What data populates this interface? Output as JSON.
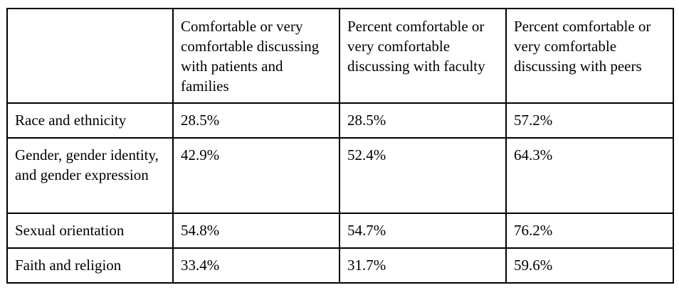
{
  "table": {
    "headers": [
      "",
      "Comfortable or very comfortable discussing with patients and families",
      "Percent comfortable or very comfortable discussing with faculty",
      "Percent comfortable or very comfortable discussing with peers"
    ],
    "rows": [
      {
        "label": "Race and ethnicity",
        "values": [
          "28.5%",
          "28.5%",
          "57.2%"
        ]
      },
      {
        "label": "Gender, gender identity, and gender expression",
        "values": [
          "42.9%",
          "52.4%",
          "64.3%"
        ]
      },
      {
        "label": "Sexual orientation",
        "values": [
          "54.8%",
          "54.7%",
          "76.2%"
        ]
      },
      {
        "label": "Faith and religion",
        "values": [
          "33.4%",
          "31.7%",
          "59.6%"
        ]
      }
    ]
  }
}
